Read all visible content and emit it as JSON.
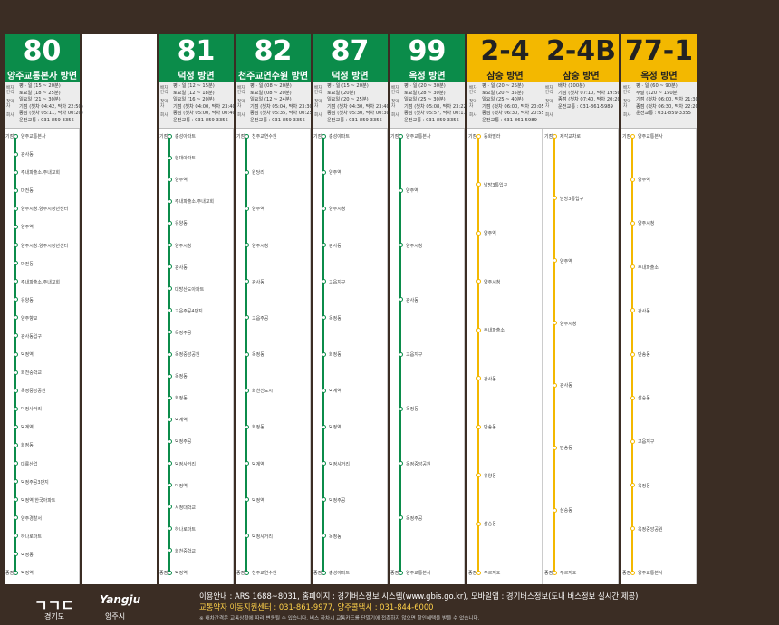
{
  "labels": {
    "interval": "배차간격",
    "firstlast": "첫막차",
    "company": "회사",
    "start": "기점",
    "end": "종점"
  },
  "routes": [
    {
      "number": "80",
      "direction": "양주교통본사 방면",
      "color": "#0b8c4a",
      "text_color": "#ffffff",
      "schedule": [
        "평 · 일 (15 ~ 20분)",
        "토요일 (18 ~ 25분)",
        "일요일 (21 ~ 30분)",
        "기점 (첫차 04:42, 막차 22:50)",
        "종점 (첫차 05:11, 막차 00:20)",
        "운전교통 : 031-859-3355"
      ],
      "stops": [
        "양주교통본사",
        "광사동",
        "주내파출소.주내교회",
        "마전동",
        "양주시청.양주시청년센터",
        "양주역",
        "양주시청.양주시청년센터",
        "마전동",
        "주내파출소.주내교회",
        "유양동",
        "양주향교",
        "광사동입구",
        "덕정역",
        "회천중학교",
        "옥정중앙공원",
        "덕정사거리",
        "덕계역",
        "회정동",
        "대륭산업",
        "덕정주공3단지",
        "덕정역 한국아파트",
        "양주경찰서",
        "하나로마트",
        "덕정동",
        "덕정역"
      ]
    },
    {
      "number": "81",
      "direction": "덕정 방면",
      "color": "#0b8c4a",
      "text_color": "#ffffff",
      "schedule": [
        "평 · 일 (12 ~ 15분)",
        "토요일 (12 ~ 18분)",
        "일요일 (16 ~ 20분)",
        "기점 (첫차 04:00, 막차 23:40)",
        "종점 (첫차 05:00, 막차 00:40)",
        "운전교통 : 031-859-3355"
      ],
      "stops": [
        "충성아파트",
        "현대아파트",
        "양주역",
        "주내파출소.주내교회",
        "유양동",
        "양주시청",
        "광사동",
        "대방산도아파트",
        "고읍주공4단지",
        "옥정주공",
        "옥정중앙공원",
        "옥정동",
        "회정동",
        "덕계역",
        "덕정주공",
        "덕정사거리",
        "덕정역",
        "서정대학교",
        "하나로마트",
        "회천중학교",
        "덕정역"
      ]
    },
    {
      "number": "82",
      "direction": "천주교연수원 방면",
      "color": "#0b8c4a",
      "text_color": "#ffffff",
      "schedule": [
        "평 · 일 (08 ~ 20분)",
        "토요일 (08 ~ 20분)",
        "일요일 (12 ~ 24분)",
        "기점 (첫차 05:04, 막차 23:30)",
        "종점 (첫차 05:35, 막차 00:25)",
        "운전교통 : 031-859-3355"
      ],
      "stops": [
        "천주교연수원",
        "원당리",
        "양주역",
        "양주시청",
        "광사동",
        "고읍주공",
        "옥정동",
        "회천신도시",
        "회정동",
        "덕계역",
        "덕정역",
        "덕정사거리",
        "천주교연수원"
      ]
    },
    {
      "number": "87",
      "direction": "덕정 방면",
      "color": "#0b8c4a",
      "text_color": "#ffffff",
      "schedule": [
        "평 · 일 (15 ~ 20분)",
        "토요일 (20분)",
        "일요일 (20 ~ 25분)",
        "기점 (첫차 04:30, 막차 23:40)",
        "종점 (첫차 05:30, 막차 00:30)",
        "운전교통 : 031-859-3355"
      ],
      "stops": [
        "충성아파트",
        "양주역",
        "양주시청",
        "광사동",
        "고읍지구",
        "옥정동",
        "회정동",
        "덕계역",
        "덕정역",
        "덕정사거리",
        "덕정주공",
        "옥정동",
        "충성아파트"
      ]
    },
    {
      "number": "99",
      "direction": "옥정 방면",
      "color": "#0b8c4a",
      "text_color": "#ffffff",
      "schedule": [
        "평 · 일 (20 ~ 30분)",
        "토요일 (28 ~ 30분)",
        "일요일 (25 ~ 30분)",
        "기점 (첫차 05:08, 막차 23:22)",
        "종점 (첫차 05:57, 막차 00:11)",
        "운전교통 : 031-859-3355"
      ],
      "stops": [
        "양주교통본사",
        "양주역",
        "양주시청",
        "광사동",
        "고읍지구",
        "옥정동",
        "옥정중앙공원",
        "옥정주공",
        "양주교통본사"
      ]
    },
    {
      "number": "2-4",
      "direction": "삼숭 방면",
      "color": "#f3b800",
      "text_color": "#222222",
      "schedule": [
        "평 · 일 (20 ~ 25분)",
        "토요일 (20 ~ 35분)",
        "일요일 (25 ~ 40분)",
        "기점 (첫차 06:00, 막차 20:05)",
        "종점 (첫차 06:30, 막차 20:55)",
        "운전교통 : 031-861-5989"
      ],
      "stops": [
        "동화빌라",
        "남방3통입구",
        "양주역",
        "양주시청",
        "주내파출소",
        "광사동",
        "만송동",
        "유양동",
        "삼숭동",
        "푸르지오"
      ]
    },
    {
      "number": "2-4B",
      "direction": "삼숭 방면",
      "color": "#f3b800",
      "text_color": "#222222",
      "schedule": [
        "배차 (100분)",
        "기점 (첫차 07:10, 막차 19:50)",
        "종점 (첫차 07:40, 막차 20:20)",
        "운전교통 : 031-861-5989"
      ],
      "stops": [
        "제각교차로",
        "남방3통입구",
        "양주역",
        "양주시청",
        "광사동",
        "만송동",
        "삼숭동",
        "푸르지오"
      ]
    },
    {
      "number": "77-1",
      "direction": "옥정 방면",
      "color": "#f3b800",
      "text_color": "#222222",
      "schedule": [
        "평 · 일 (60 ~ 90분)",
        "주말 (120 ~ 150분)",
        "기점 (첫차 06:00, 막차 21:30)",
        "종점 (첫차 06:30, 막차 22:20)",
        "운전교통 : 031-859-3355"
      ],
      "stops": [
        "양주교통본사",
        "양주역",
        "양주시청",
        "주내파출소",
        "광사동",
        "만송동",
        "삼숭동",
        "고읍지구",
        "옥정동",
        "옥정중앙공원",
        "양주교통본사"
      ]
    }
  ],
  "footer": {
    "logo1": "경기도",
    "logo2": "양주시",
    "logo2_en": "Yangju",
    "info1": "이용안내 : ARS 1688~8031, 홈페이지 : 경기버스정보 시스템(www.gbis.go.kr), 모바일앱 : 경기버스정보(도내 버스정보 실시간 제공)",
    "info2": "교통약자 이동지원센터 : 031-861-9977, 양주콜택시 : 031-844-6000",
    "info3": "※ 배차간격은 교통상황에 따라 변동될 수 있습니다. 버스 하차시 교통카드를 단말기에 접촉하지 않으면 할인혜택을 받을 수 없습니다."
  }
}
